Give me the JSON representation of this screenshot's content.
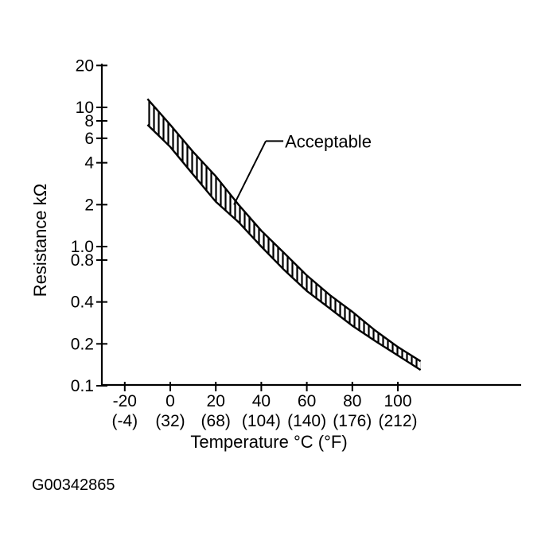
{
  "chart_data": {
    "type": "area",
    "ylabel": "Resistance kΩ",
    "xlabel": "Temperature °C (°F)",
    "y_scale": "log",
    "ylim": [
      0.1,
      20
    ],
    "xlim": [
      -20,
      110
    ],
    "x_ticks": [
      {
        "value": -20,
        "label": "-20",
        "sub": "(-4)"
      },
      {
        "value": 0,
        "label": "0",
        "sub": "(32)"
      },
      {
        "value": 20,
        "label": "20",
        "sub": "(68)"
      },
      {
        "value": 40,
        "label": "40",
        "sub": "(104)"
      },
      {
        "value": 60,
        "label": "60",
        "sub": "(140)"
      },
      {
        "value": 80,
        "label": "80",
        "sub": "(176)"
      },
      {
        "value": 100,
        "label": "100",
        "sub": "(212)"
      }
    ],
    "y_ticks": [
      {
        "value": 20,
        "label": "20"
      },
      {
        "value": 10,
        "label": "10"
      },
      {
        "value": 8,
        "label": "8"
      },
      {
        "value": 6,
        "label": "6"
      },
      {
        "value": 4,
        "label": "4"
      },
      {
        "value": 2,
        "label": "2"
      },
      {
        "value": 1.0,
        "label": "1.0"
      },
      {
        "value": 0.8,
        "label": "0.8"
      },
      {
        "value": 0.4,
        "label": "0.4"
      },
      {
        "value": 0.2,
        "label": "0.2"
      },
      {
        "value": 0.1,
        "label": "0.1"
      }
    ],
    "series": [
      {
        "name": "Acceptable",
        "upper": [
          {
            "x": -10,
            "y": 11.5
          },
          {
            "x": 0,
            "y": 7.5
          },
          {
            "x": 10,
            "y": 4.8
          },
          {
            "x": 20,
            "y": 3.2
          },
          {
            "x": 30,
            "y": 2.0
          },
          {
            "x": 40,
            "y": 1.3
          },
          {
            "x": 50,
            "y": 0.9
          },
          {
            "x": 60,
            "y": 0.62
          },
          {
            "x": 70,
            "y": 0.45
          },
          {
            "x": 80,
            "y": 0.34
          },
          {
            "x": 90,
            "y": 0.25
          },
          {
            "x": 100,
            "y": 0.19
          },
          {
            "x": 110,
            "y": 0.15
          }
        ],
        "lower": [
          {
            "x": -10,
            "y": 7.5
          },
          {
            "x": 0,
            "y": 5.2
          },
          {
            "x": 10,
            "y": 3.3
          },
          {
            "x": 20,
            "y": 2.1
          },
          {
            "x": 30,
            "y": 1.5
          },
          {
            "x": 40,
            "y": 1.0
          },
          {
            "x": 50,
            "y": 0.68
          },
          {
            "x": 60,
            "y": 0.48
          },
          {
            "x": 70,
            "y": 0.36
          },
          {
            "x": 80,
            "y": 0.27
          },
          {
            "x": 90,
            "y": 0.21
          },
          {
            "x": 100,
            "y": 0.165
          },
          {
            "x": 110,
            "y": 0.13
          }
        ]
      }
    ],
    "annotation": {
      "text": "Acceptable",
      "x": 28,
      "y": 2.0
    },
    "grid": false
  },
  "figure_code": "G00342865"
}
